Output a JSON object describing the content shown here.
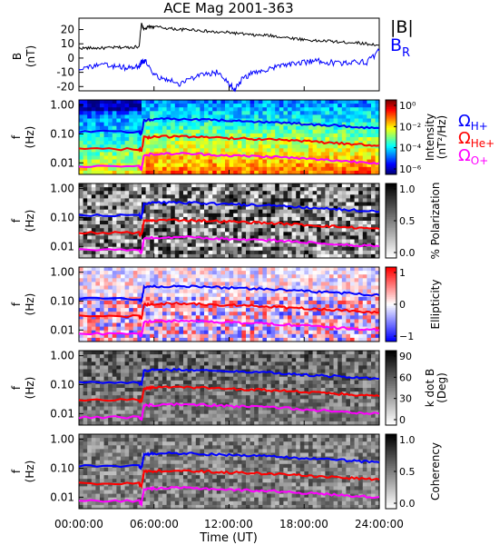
{
  "title": "ACE Mag 2001-363",
  "xlabel": "Time (UT)",
  "xticks": [
    "00:00:00",
    "06:00:00",
    "12:00:00",
    "18:00:00",
    "24:00:00"
  ],
  "colors": {
    "B_total": "#000000",
    "B_R": "#0000ff",
    "omega_H": "#0000ff",
    "omega_He": "#ff0000",
    "omega_O": "#ff00ff"
  },
  "legend": {
    "B_total": "|B|",
    "B_R_main": "B",
    "B_R_sub": "R",
    "omega": "Ω",
    "H_sub": "H+",
    "He_sub": "He+",
    "O_sub": "O+"
  },
  "chart_data": [
    {
      "type": "line",
      "panel": "magnetic-field",
      "ylabel_lines": [
        "B",
        "(nT)"
      ],
      "yticks": [
        "20",
        "10",
        "0",
        "-10",
        "-20"
      ],
      "ylim": [
        -23,
        28
      ],
      "xlim_hours": [
        0,
        24
      ],
      "series": [
        {
          "name": "|B|",
          "x_hours": [
            0,
            1,
            2,
            3,
            4,
            4.8,
            5.0,
            5.2,
            5.6,
            6,
            7,
            8,
            9,
            10,
            11,
            12,
            13,
            14,
            15,
            16,
            17,
            18,
            19,
            20,
            21,
            22,
            23,
            24
          ],
          "values": [
            7,
            7,
            7,
            7.5,
            7.5,
            8,
            24,
            20,
            22,
            22,
            21,
            20,
            20,
            19,
            18,
            18,
            17,
            16,
            16,
            15,
            14,
            13,
            12,
            12,
            11,
            11,
            10,
            9
          ]
        },
        {
          "name": "B_R",
          "x_hours": [
            0,
            1,
            2,
            3,
            4,
            4.8,
            5.0,
            5.3,
            6,
            7,
            8,
            9,
            10,
            11,
            12,
            12.5,
            13,
            14,
            15,
            16,
            17,
            18,
            19,
            20,
            21,
            22,
            23,
            24
          ],
          "values": [
            -7,
            -6,
            -5,
            -6,
            -7,
            -6,
            -3,
            -2,
            -12,
            -15,
            -18,
            -14,
            -12,
            -10,
            -18,
            -22,
            -15,
            -10,
            -8,
            -6,
            -4,
            -3,
            -2,
            -3,
            -4,
            -2,
            -3,
            5
          ]
        }
      ]
    },
    {
      "type": "heatmap",
      "panel": "intensity",
      "ylabel_lines": [
        "f",
        "(Hz)"
      ],
      "yticks": [
        "1.00",
        "0.10",
        "0.01"
      ],
      "colorbar_label_lines": [
        "Intensity",
        "(nT²/Hz)"
      ],
      "colorbar_ticks": [
        "10⁰",
        "10⁻²",
        "10⁻⁴",
        "10⁻⁶"
      ],
      "curves": [
        {
          "name": "ΩH+",
          "x_hours": [
            0,
            4.8,
            5.0,
            5.2,
            6,
            8,
            10,
            12,
            14,
            16,
            18,
            20,
            22,
            24
          ],
          "freq_hz": [
            0.12,
            0.12,
            0.1,
            0.3,
            0.32,
            0.33,
            0.31,
            0.29,
            0.27,
            0.25,
            0.22,
            0.2,
            0.18,
            0.16
          ]
        },
        {
          "name": "ΩHe+",
          "x_hours": [
            0,
            4.8,
            5.0,
            5.2,
            6,
            8,
            10,
            12,
            14,
            16,
            18,
            20,
            22,
            24
          ],
          "freq_hz": [
            0.03,
            0.03,
            0.025,
            0.075,
            0.08,
            0.082,
            0.078,
            0.072,
            0.068,
            0.062,
            0.056,
            0.05,
            0.045,
            0.04
          ]
        },
        {
          "name": "ΩO+",
          "x_hours": [
            0,
            4.8,
            5.0,
            5.2,
            6,
            8,
            10,
            12,
            14,
            16,
            18,
            20,
            22,
            24
          ],
          "freq_hz": [
            0.0075,
            0.0075,
            0.006,
            0.019,
            0.02,
            0.021,
            0.02,
            0.018,
            0.017,
            0.016,
            0.014,
            0.0125,
            0.011,
            0.01
          ]
        }
      ]
    },
    {
      "type": "heatmap",
      "panel": "polarization",
      "ylabel_lines": [
        "f",
        "(Hz)"
      ],
      "yticks": [
        "1.00",
        "0.10",
        "0.01"
      ],
      "colorbar_label_lines": [
        "% Polarization"
      ],
      "colorbar_ticks": [
        "1.0",
        "0.5",
        "0.0"
      ]
    },
    {
      "type": "heatmap",
      "panel": "ellipticity",
      "ylabel_lines": [
        "f",
        "(Hz)"
      ],
      "yticks": [
        "1.00",
        "0.10",
        "0.01"
      ],
      "colorbar_label_lines": [
        "Ellipticity"
      ],
      "colorbar_ticks": [
        "1",
        "0",
        "−1"
      ]
    },
    {
      "type": "heatmap",
      "panel": "k-dot-b",
      "ylabel_lines": [
        "f",
        "(Hz)"
      ],
      "yticks": [
        "1.00",
        "0.10",
        "0.01"
      ],
      "colorbar_label_lines": [
        "k dot B",
        "(Deg)"
      ],
      "colorbar_ticks": [
        "90",
        "60",
        "30",
        "0"
      ]
    },
    {
      "type": "heatmap",
      "panel": "coherency",
      "ylabel_lines": [
        "f",
        "(Hz)"
      ],
      "yticks": [
        "1.00",
        "0.10",
        "0.01"
      ],
      "colorbar_label_lines": [
        "Coherency"
      ],
      "colorbar_ticks": [
        "1.0",
        "0.5",
        "0.0"
      ]
    }
  ]
}
